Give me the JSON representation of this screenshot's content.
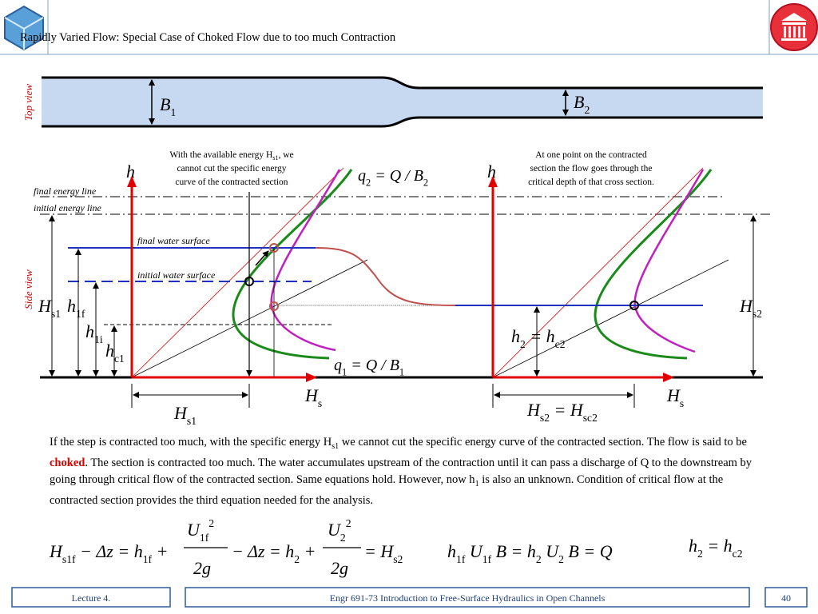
{
  "header": {
    "title": "Rapidly Varied Flow: Special Case of Choked Flow due to too much Contraction"
  },
  "top_view": {
    "label": "Top view",
    "B1": [
      "B",
      "1"
    ],
    "B2": [
      "B",
      "2"
    ]
  },
  "side_view": {
    "label": "Side view",
    "final_energy_line": "final energy line",
    "initial_energy_line": "initial energy line",
    "final_water_surface": "final water surface",
    "initial_water_surface": "initial water surface",
    "h_left": "h",
    "h_right": "h",
    "q2": [
      "q",
      "2",
      " = Q / B",
      "2"
    ],
    "q1": [
      "q",
      "1",
      " = Q / B",
      "1"
    ],
    "Hs_left_axis": [
      "H",
      "s"
    ],
    "Hs_right_axis": [
      "H",
      "s"
    ],
    "Hs1_left": [
      "H",
      "s1"
    ],
    "h1f": [
      "h",
      "1f"
    ],
    "h1i": [
      "h",
      "1i"
    ],
    "hc1": [
      "h",
      "c1"
    ],
    "Hs1_bottom": [
      "H",
      "s1"
    ],
    "h2_hc2": [
      "h",
      "2",
      " = h",
      "c2"
    ],
    "Hs2_right": [
      "H",
      "s2"
    ],
    "Hs2_Hsc2": [
      "H",
      "s2",
      " = H",
      "sc2"
    ]
  },
  "notes": {
    "left": [
      "With the available energy H",
      "s1",
      ", we",
      "cannot cut the specific energy",
      "curve of the contracted section"
    ],
    "right": [
      "At one point on the contracted",
      "section the flow goes through the",
      "critical depth of that cross section."
    ]
  },
  "paragraph": [
    "If the step is contracted too much, with the specific energy H",
    "s1",
    " we cannot cut the specific energy curve of the contracted section. The flow is said to be ",
    "choked",
    ". The section is contracted too much. The water accumulates upstream of the contraction until it can pass a discharge of Q to the downstream by going through critical flow of the contracted section. Same equations hold. However, now h",
    "1",
    " is also an unknown. Condition of critical flow at the contracted section provides the third equation needed for the analysis."
  ],
  "equations": {
    "energy": {
      "lhs": [
        "H",
        "s1f",
        " − Δz = h",
        "1f",
        " +"
      ],
      "frac1_num": [
        "U",
        "1f",
        "2"
      ],
      "frac1_den": "2g",
      "mid": [
        "− Δz = h",
        "2",
        " +"
      ],
      "frac2_num": [
        "U",
        "2",
        "2"
      ],
      "frac2_den": "2g",
      "rhs": [
        "= H",
        "s2"
      ]
    },
    "continuity": [
      "h",
      "1f",
      " U",
      "1f",
      " B = h",
      "2",
      " U",
      "2",
      " B = Q"
    ],
    "critical": [
      "h",
      "2",
      " = h",
      "c2"
    ]
  },
  "footer": {
    "lecture": "Lecture 4.",
    "course": "Engr 691-73 Introduction to Free-Surface Hydraulics in Open Channels",
    "page": "40"
  }
}
